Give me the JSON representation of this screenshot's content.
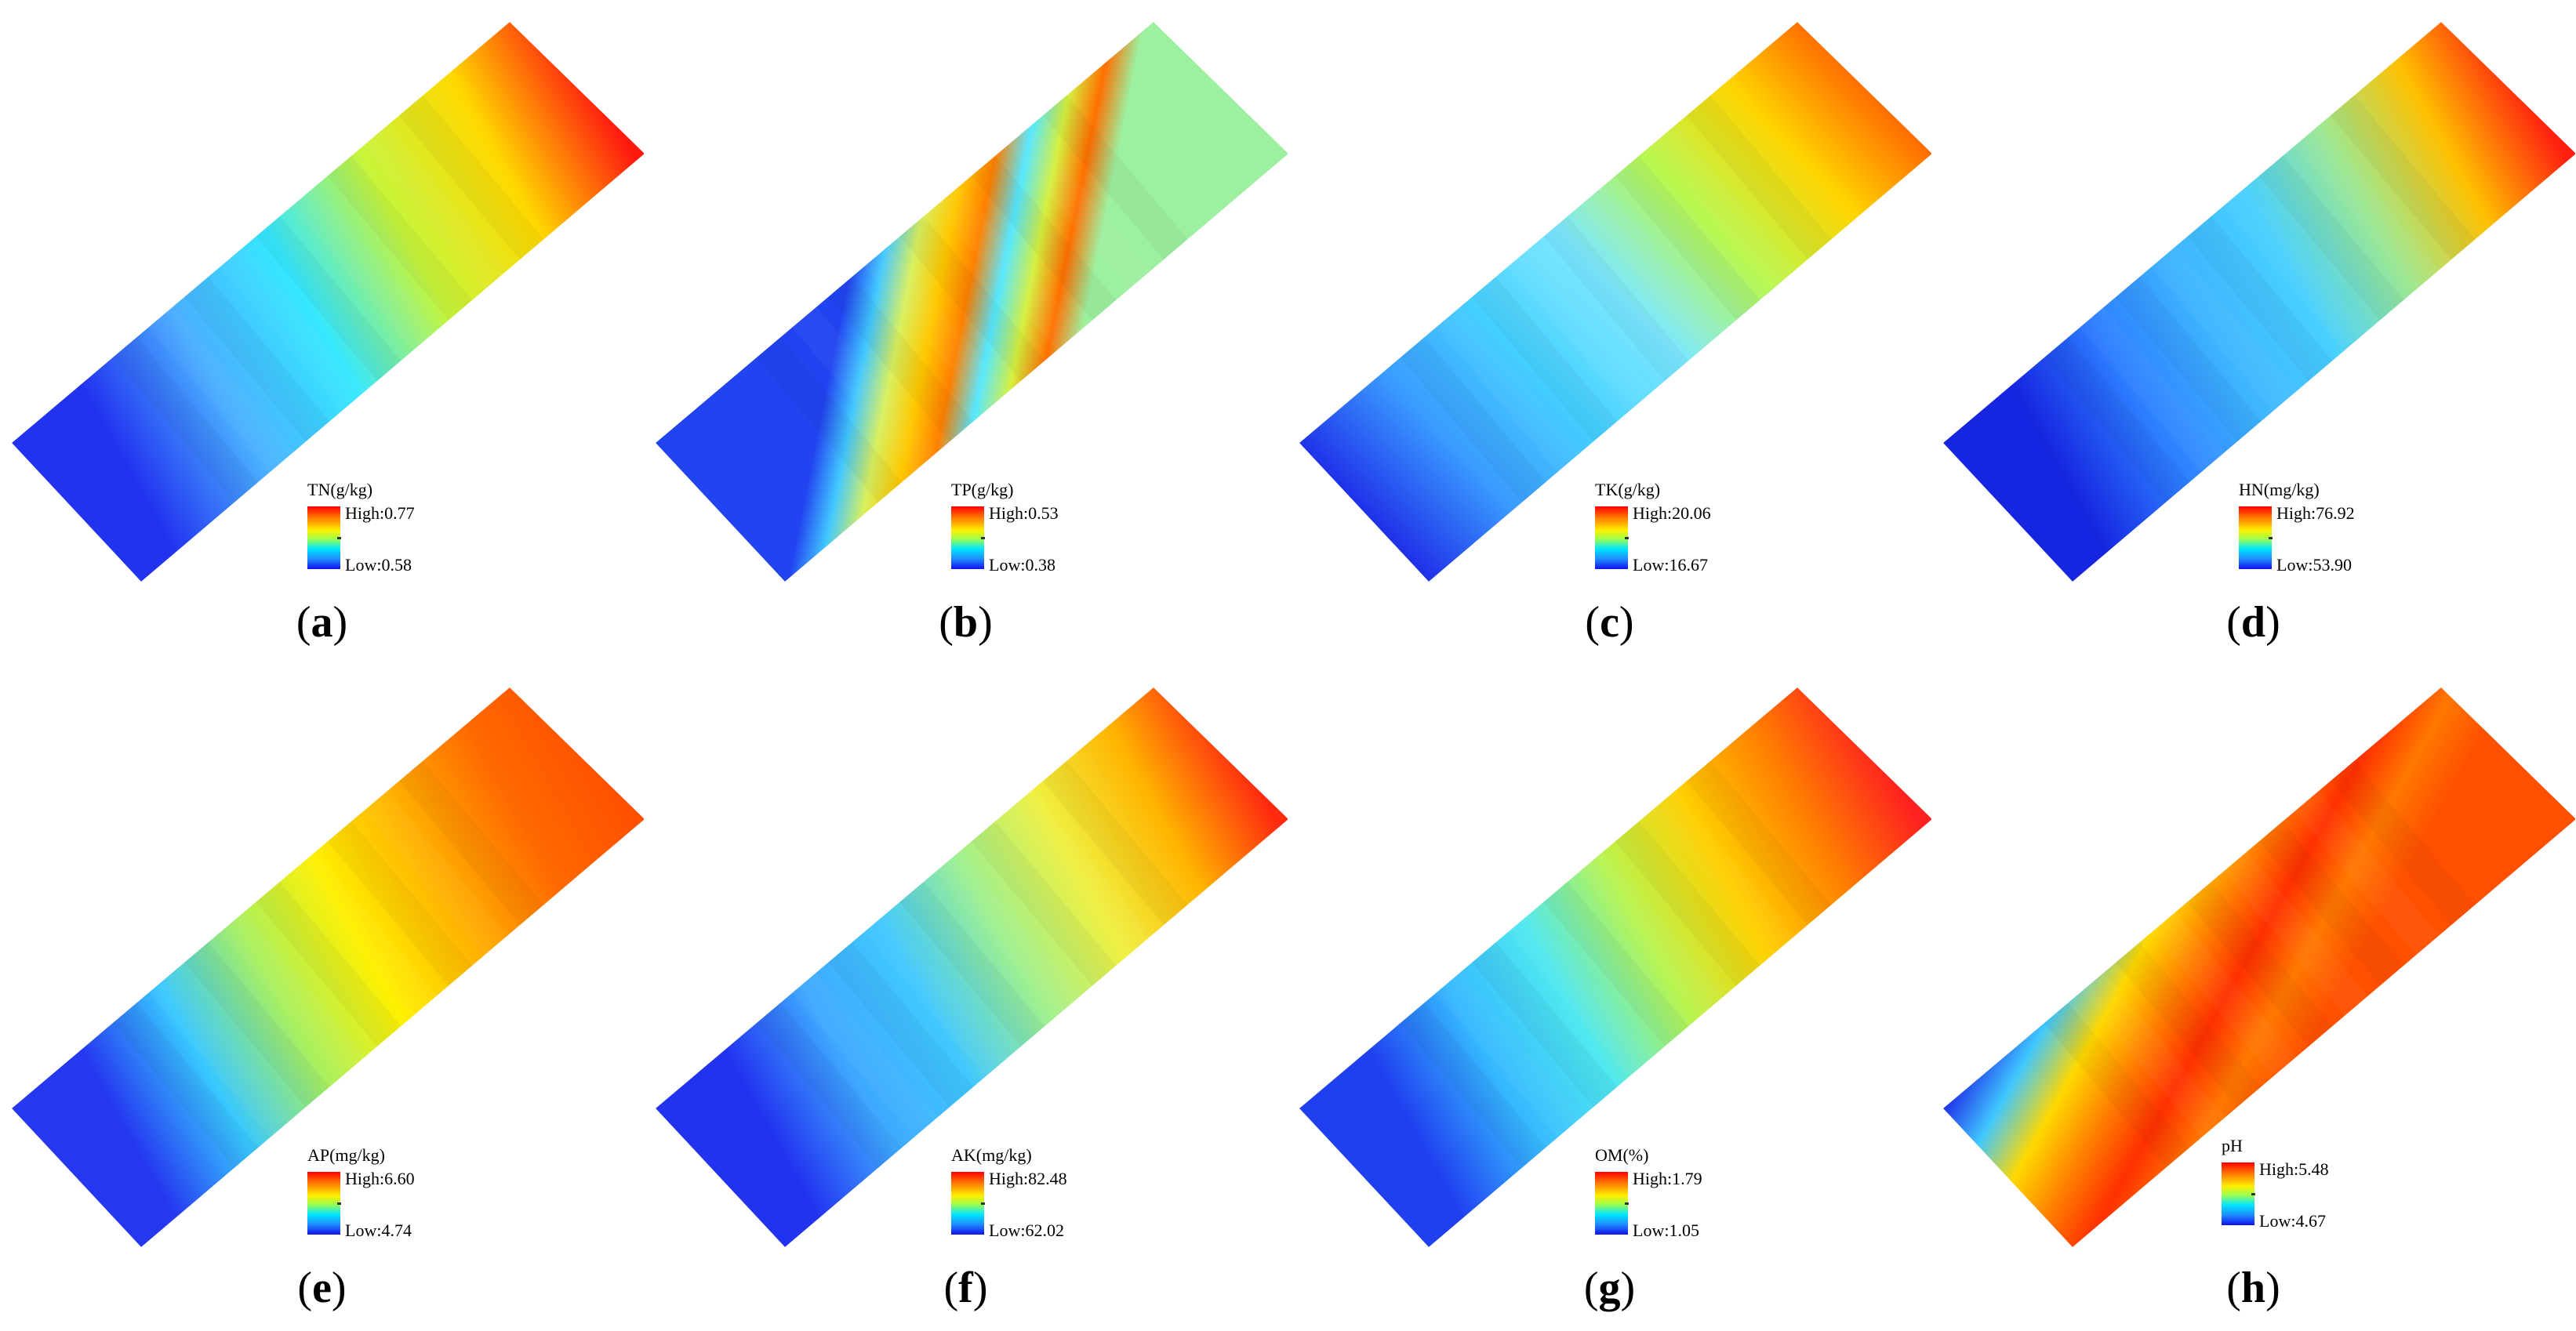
{
  "panels": [
    {
      "letter": "a",
      "title": "TN(g/kg)",
      "high": "High:0.77",
      "low": "Low:0.58",
      "colors": [
        "#2233f0",
        "#4ab0ff",
        "#35e8ff",
        "#c8f53a",
        "#ffd800",
        "#ff1a10"
      ],
      "mode": "linear"
    },
    {
      "letter": "b",
      "title": "TP(g/kg)",
      "high": "High:0.53",
      "low": "Low:0.38",
      "colors": [
        "#2244f0",
        "#42c8ff",
        "#d8f060",
        "#ffc800",
        "#ff8000",
        "#55e8ff",
        "#d5f040",
        "#ff7000",
        "#9cf0a0"
      ],
      "mode": "bands"
    },
    {
      "letter": "c",
      "title": "TK(g/kg)",
      "high": "High:20.06",
      "low": "Low:16.67",
      "colors": [
        "#1f2ee8",
        "#3a9cff",
        "#45d0ff",
        "#7de8ff",
        "#b8f850",
        "#ffd400",
        "#ff5a00"
      ],
      "mode": "linear"
    },
    {
      "letter": "d",
      "title": "HN(mg/kg)",
      "high": "High:76.92",
      "low": "Low:53.90",
      "colors": [
        "#1626e0",
        "#2c7cff",
        "#3eb4ff",
        "#48d0ff",
        "#9ee890",
        "#ffc000",
        "#ff2010"
      ],
      "mode": "linear"
    },
    {
      "letter": "e",
      "title": "AP(mg/kg)",
      "high": "High:6.60",
      "low": "Low:4.74",
      "colors": [
        "#2538f0",
        "#38c8ff",
        "#a8f060",
        "#fff000",
        "#ffb000",
        "#ff6a00",
        "#ff5000"
      ],
      "mode": "linear"
    },
    {
      "letter": "f",
      "title": "AK(mg/kg)",
      "high": "High:82.48",
      "low": "Low:62.02",
      "colors": [
        "#2233f0",
        "#3ea8ff",
        "#40c8ff",
        "#9ef090",
        "#f0f040",
        "#ffb400",
        "#ff2a10"
      ],
      "mode": "linear"
    },
    {
      "letter": "g",
      "title": "OM(%)",
      "high": "High:1.79",
      "low": "Low:1.05",
      "colors": [
        "#2040f0",
        "#35b8ff",
        "#50e8f0",
        "#b8f450",
        "#ffd000",
        "#ff8000",
        "#ff2020"
      ],
      "mode": "linear"
    },
    {
      "letter": "h",
      "title": "pH",
      "high": "High:5.48",
      "low": "Low:4.67",
      "colors": [
        "#1f30e8",
        "#40c8ff",
        "#ffd800",
        "#ff8000",
        "#ff3000",
        "#ff7800",
        "#ff5000"
      ],
      "mode": "linear"
    }
  ]
}
